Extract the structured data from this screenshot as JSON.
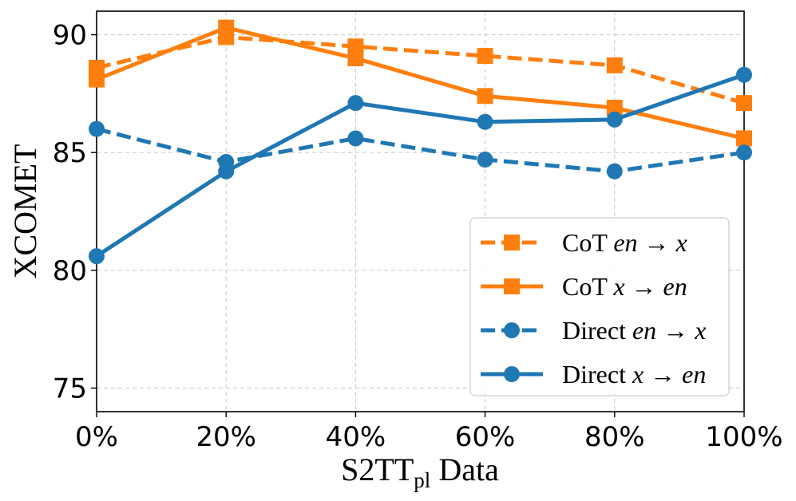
{
  "chart_data": {
    "type": "line",
    "xlabel": "S2TT",
    "xlabel_sub": "pl",
    "xlabel_suffix": " Data",
    "ylabel": "XCOMET",
    "x": [
      0,
      20,
      40,
      60,
      80,
      100
    ],
    "x_tick_labels": [
      "0%",
      "20%",
      "40%",
      "60%",
      "80%",
      "100%"
    ],
    "xlim": [
      0,
      100
    ],
    "ylim": [
      74,
      91
    ],
    "y_ticks": [
      75,
      80,
      85,
      90
    ],
    "y_tick_labels": [
      "75",
      "80",
      "85",
      "90"
    ],
    "grid": true,
    "legend_position": "lower-right",
    "series": [
      {
        "name": "CoT en→x",
        "legend_prefix": "CoT",
        "legend_src": "en",
        "legend_arrow": "→",
        "legend_tgt": "x",
        "color": "#ff7f0e",
        "marker": "square",
        "linestyle": "dashed",
        "values": [
          88.6,
          89.9,
          89.5,
          89.1,
          88.7,
          87.1
        ]
      },
      {
        "name": "CoT x→en",
        "legend_prefix": "CoT",
        "legend_src": "x",
        "legend_arrow": "→",
        "legend_tgt": "en",
        "color": "#ff7f0e",
        "marker": "square",
        "linestyle": "solid",
        "values": [
          88.1,
          90.3,
          89.0,
          87.4,
          86.9,
          85.6
        ]
      },
      {
        "name": "Direct en→x",
        "legend_prefix": "Direct",
        "legend_src": "en",
        "legend_arrow": "→",
        "legend_tgt": "x",
        "color": "#1f77b4",
        "marker": "circle",
        "linestyle": "dashed",
        "values": [
          86.0,
          84.6,
          85.6,
          84.7,
          84.2,
          85.0
        ]
      },
      {
        "name": "Direct x→en",
        "legend_prefix": "Direct",
        "legend_src": "x",
        "legend_arrow": "→",
        "legend_tgt": "en",
        "color": "#1f77b4",
        "marker": "circle",
        "linestyle": "solid",
        "values": [
          80.6,
          84.2,
          87.1,
          86.3,
          86.4,
          88.3
        ]
      }
    ]
  }
}
